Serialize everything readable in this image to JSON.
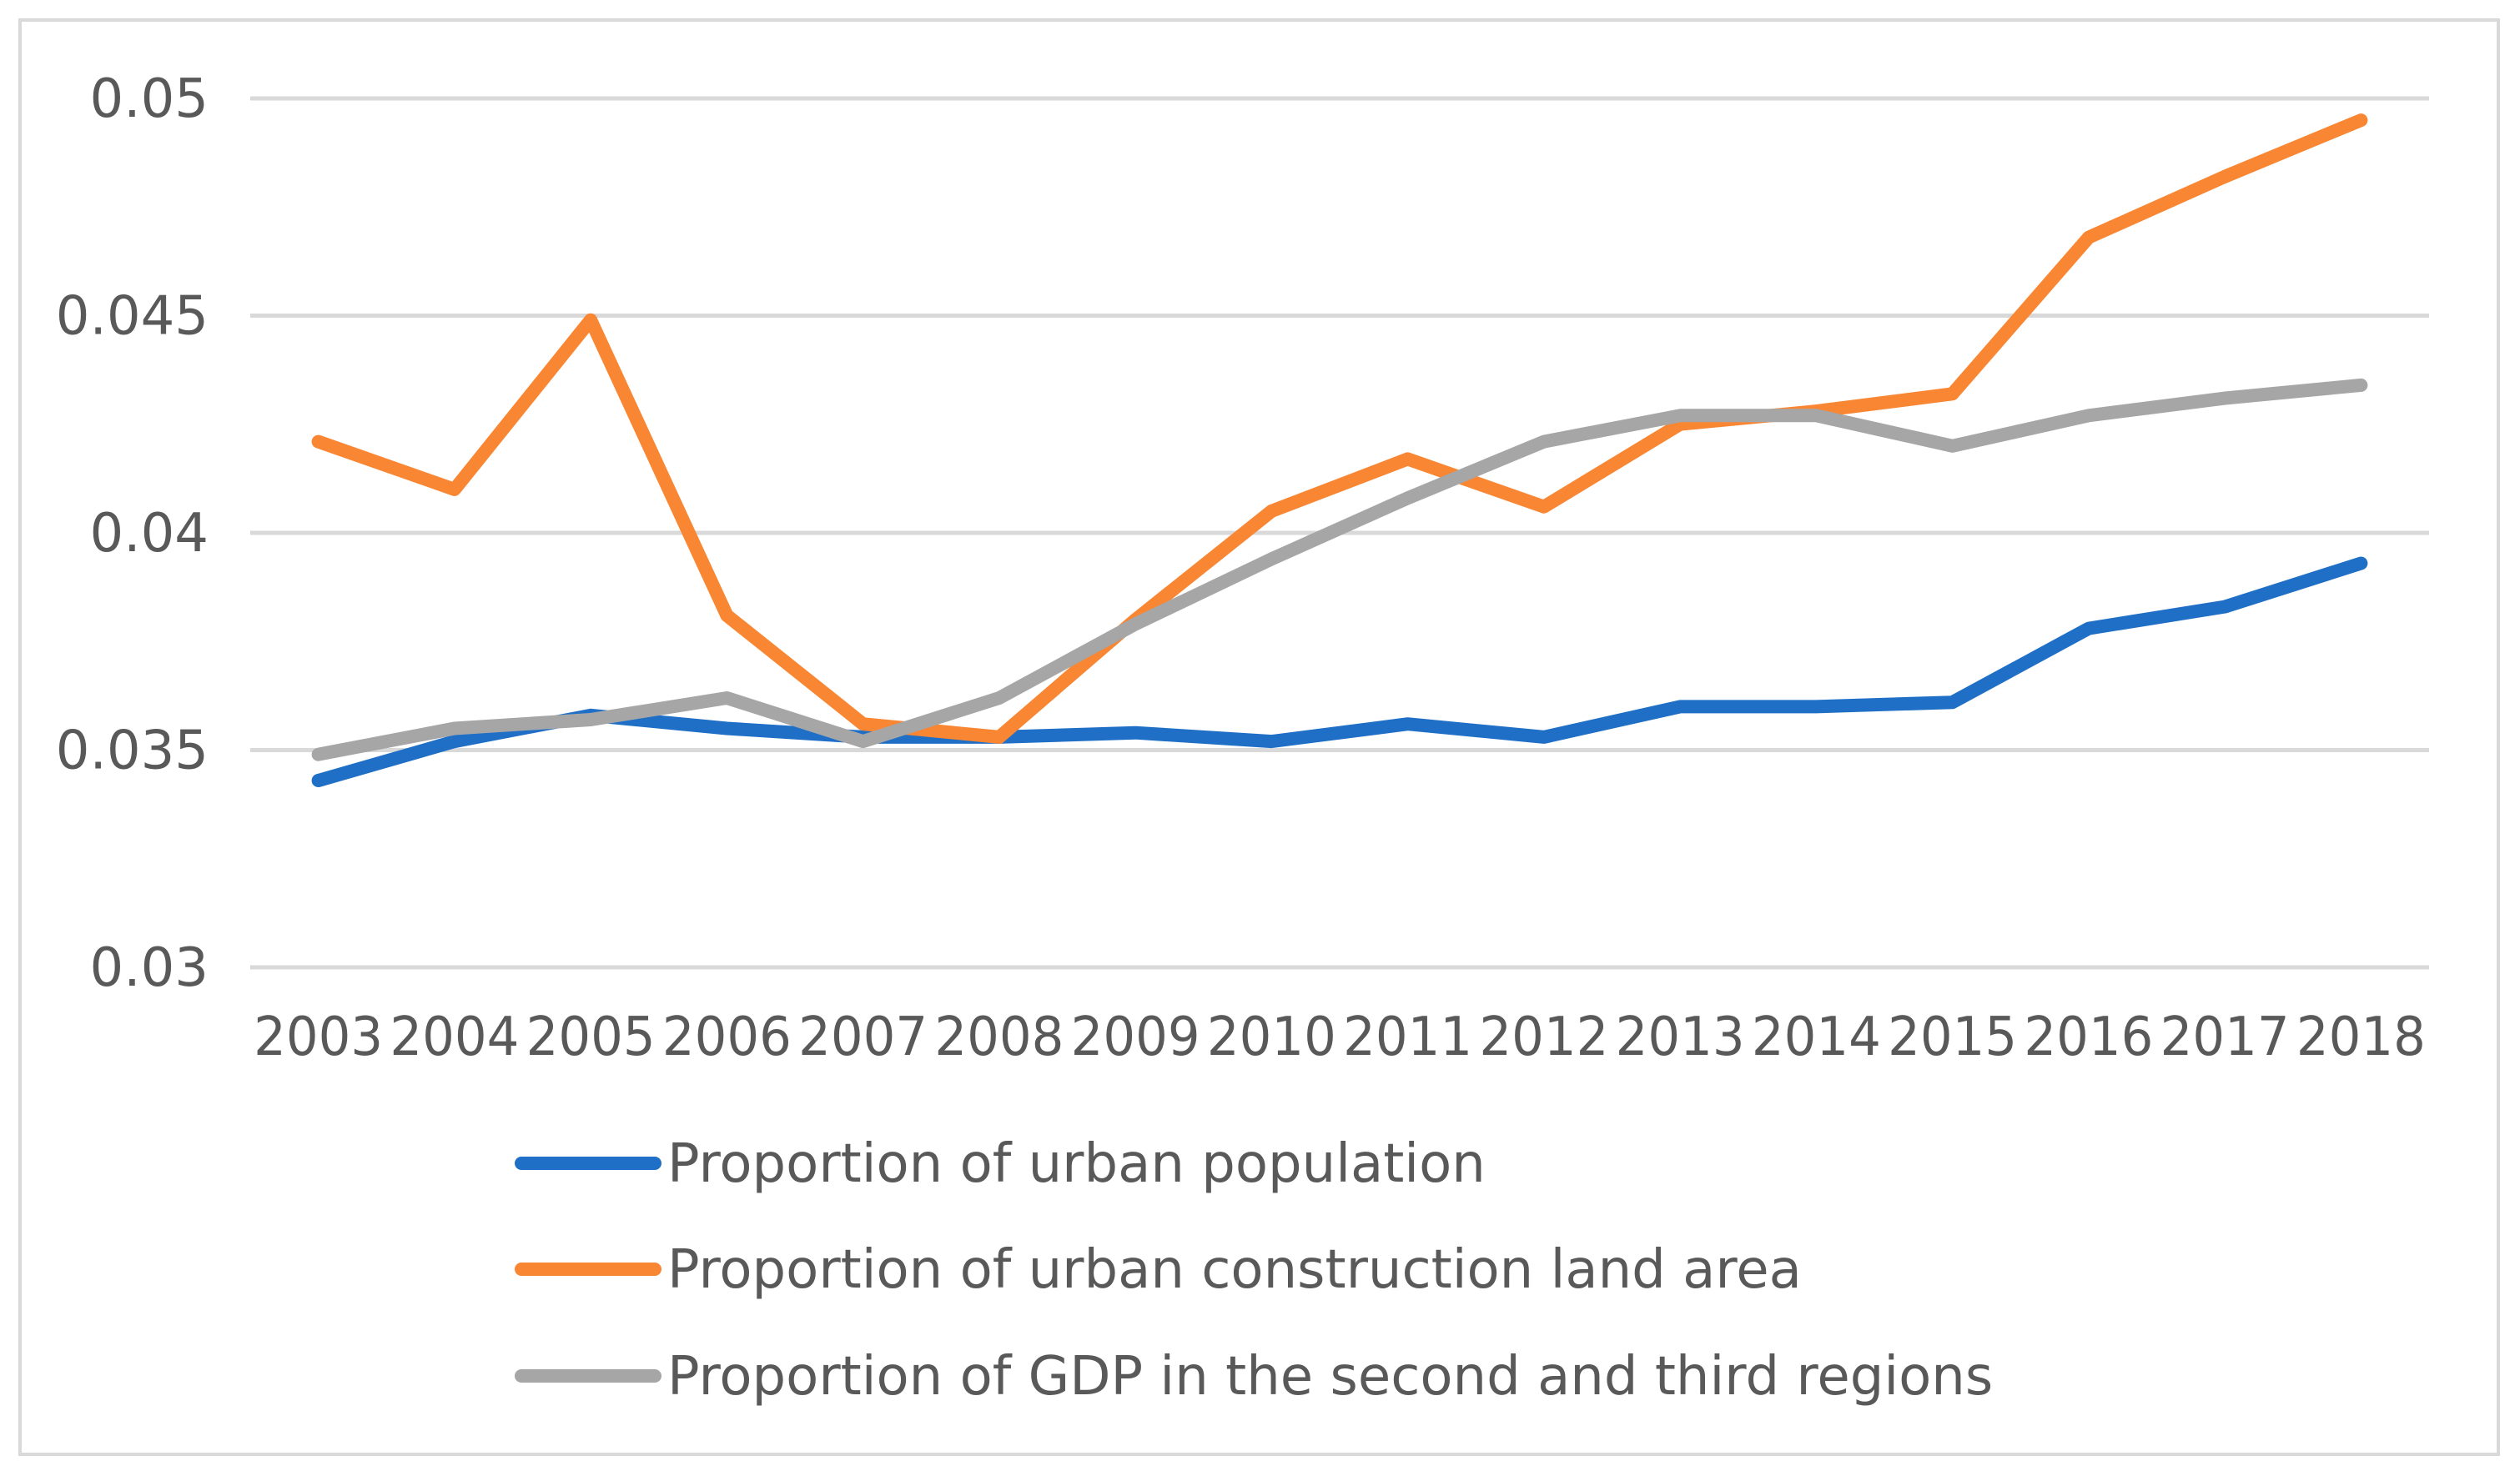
{
  "chart_data": {
    "type": "line",
    "title": "",
    "xlabel": "",
    "ylabel": "",
    "categories": [
      "2003",
      "2004",
      "2005",
      "2006",
      "2007",
      "2008",
      "2009",
      "2010",
      "2011",
      "2012",
      "2013",
      "2014",
      "2015",
      "2016",
      "2017",
      "2018"
    ],
    "ylim": [
      0.03,
      0.05
    ],
    "y_ticks": [
      0.03,
      0.035,
      0.04,
      0.045,
      0.05
    ],
    "y_tick_labels": [
      "0.03",
      "0.035",
      "0.04",
      "0.045",
      "0.05"
    ],
    "grid": true,
    "legend_position": "bottom",
    "series": [
      {
        "name": "Proportion of urban population",
        "color": "#1f6fc6",
        "values": [
          0.0343,
          0.0352,
          0.0358,
          0.0355,
          0.0353,
          0.0353,
          0.0354,
          0.0352,
          0.0356,
          0.0353,
          0.036,
          0.036,
          0.0361,
          0.0378,
          0.0383,
          0.0393
        ]
      },
      {
        "name": "Proportion of urban construction land area",
        "color": "#f98633",
        "values": [
          0.0421,
          0.041,
          0.0449,
          0.0381,
          0.0356,
          0.0353,
          0.038,
          0.0405,
          0.0417,
          0.0406,
          0.0425,
          0.0428,
          0.0432,
          0.0468,
          0.0482,
          0.0495
        ]
      },
      {
        "name": "Proportion of GDP in the second and third regions",
        "color": "#a6a6a6",
        "values": [
          0.0349,
          0.0355,
          0.0357,
          0.0362,
          0.0352,
          0.0362,
          0.0379,
          0.0394,
          0.0408,
          0.0421,
          0.0427,
          0.0427,
          0.042,
          0.0427,
          0.0431,
          0.0434
        ]
      }
    ]
  }
}
